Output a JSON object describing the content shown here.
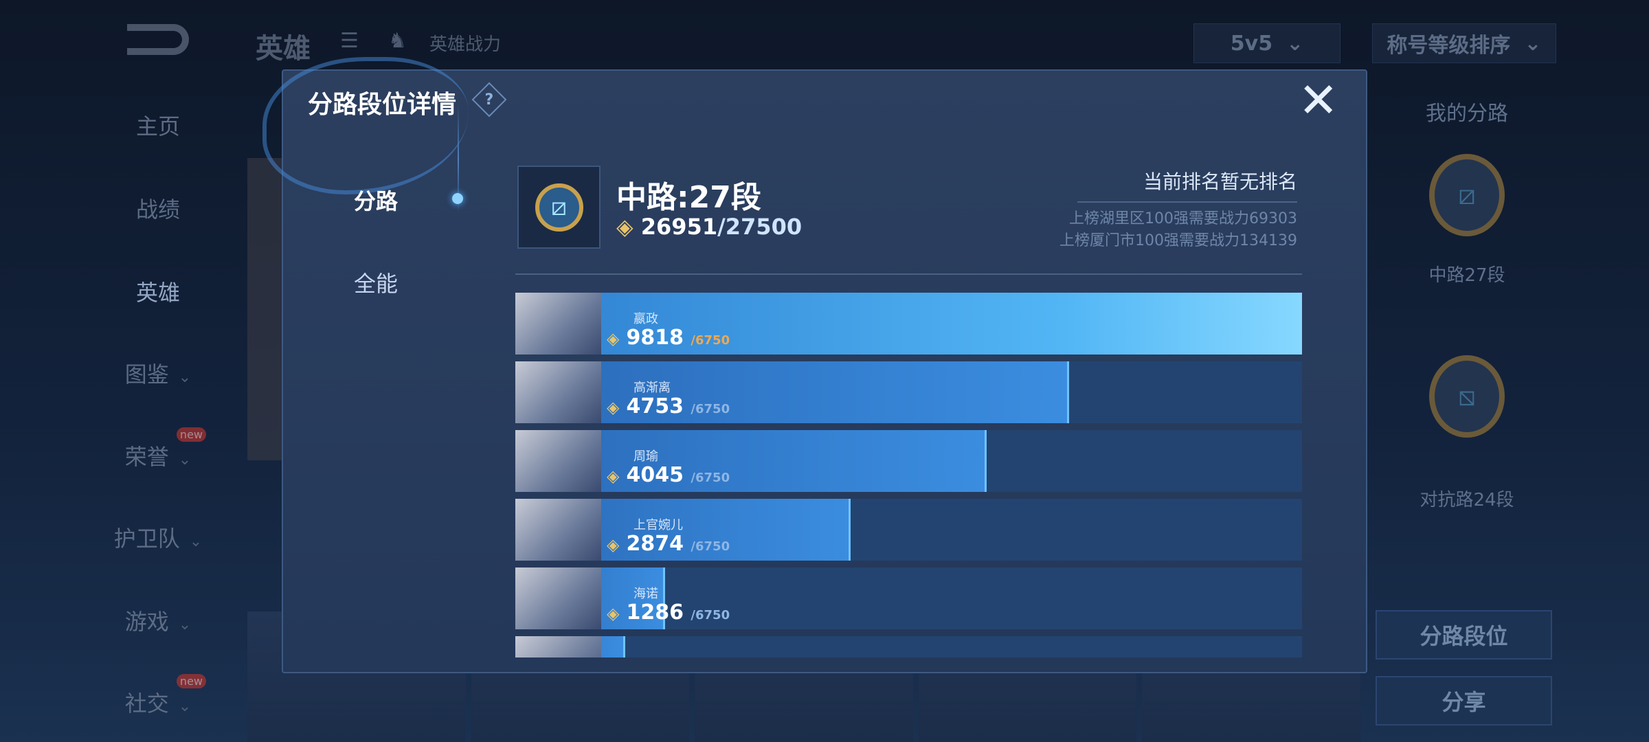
{
  "topbar": {
    "title": "英雄",
    "subtitle": "英雄战力",
    "mode": "5v5",
    "sort": "称号等级排序"
  },
  "sidebar": {
    "items": [
      {
        "label": "主页"
      },
      {
        "label": "战绩"
      },
      {
        "label": "英雄",
        "active": true
      },
      {
        "label": "图鉴",
        "chevron": true
      },
      {
        "label": "荣誉",
        "chevron": true,
        "badge": "new"
      },
      {
        "label": "护卫队",
        "chevron": true
      },
      {
        "label": "游戏",
        "chevron": true
      },
      {
        "label": "社交",
        "chevron": true,
        "badge": "new"
      }
    ]
  },
  "right_panel": {
    "title": "我的分路",
    "badges": [
      {
        "label": "中路27段"
      },
      {
        "label": "对抗路24段"
      }
    ],
    "buttons": [
      "分路段位",
      "分享"
    ]
  },
  "modal": {
    "title": "分路段位详情",
    "help": "?",
    "close": "✕",
    "tabs": [
      {
        "label": "分路",
        "active": true
      },
      {
        "label": "全能"
      }
    ],
    "lane_title": "中路:27段",
    "points": "26951",
    "points_max": "/27500",
    "rank_status": "当前排名暂无排名",
    "rank_lines": [
      "上榜湖里区100强需要战力69303",
      "上榜厦门市100强需要战力134139"
    ],
    "heroes": [
      {
        "name": "嬴政",
        "value": 9818,
        "max": "/6750",
        "progress": 1.0
      },
      {
        "name": "高渐离",
        "value": 4753,
        "max": "/6750",
        "progress": 0.704
      },
      {
        "name": "周瑜",
        "value": 4045,
        "max": "/6750",
        "progress": 0.599
      },
      {
        "name": "上官婉儿",
        "value": 2874,
        "max": "/6750",
        "progress": 0.426
      },
      {
        "name": "海诺",
        "value": 1286,
        "max": "/6750",
        "progress": 0.19
      },
      {
        "progress": 0.14
      }
    ]
  },
  "colors": {
    "accent": "#3b8de0",
    "gold": "#e8c46a",
    "over_max": "#f0a850"
  }
}
